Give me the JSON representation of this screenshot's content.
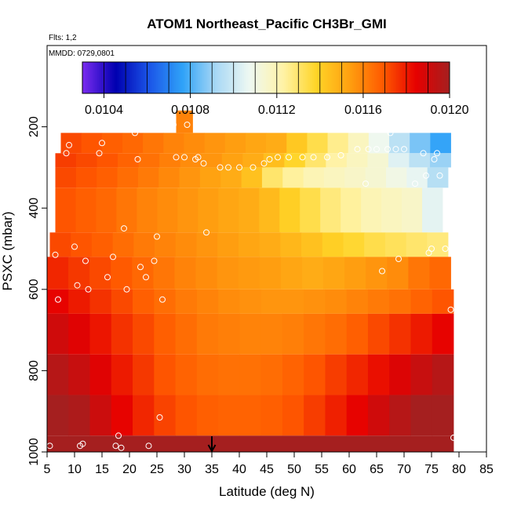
{
  "chart_data": {
    "type": "heatmap",
    "title": "ATOM1 Northeast_Pacific CH3Br_GMI",
    "notes": [
      "Flts: 1,2",
      "MMDD: 0729,0801"
    ],
    "xlabel": "Latitude (deg N)",
    "ylabel": "PSXC (mbar)",
    "xlim": [
      5,
      85
    ],
    "ylim": [
      1000,
      0
    ],
    "x_ticks": [
      5,
      10,
      15,
      20,
      25,
      30,
      35,
      40,
      45,
      50,
      55,
      60,
      65,
      70,
      75,
      80,
      85
    ],
    "y_ticks": [
      200,
      400,
      600,
      800,
      1000
    ],
    "colorbar": {
      "range": [
        0.0103,
        0.012
      ],
      "tick_values": [
        0.0104,
        0.0108,
        0.0112,
        0.0116,
        0.012
      ],
      "tick_labels": [
        "0.0104",
        "0.0108",
        "0.0112",
        "0.0116",
        "0.0120"
      ],
      "colors": [
        "#7b2cf0",
        "#0000b0",
        "#1b55e8",
        "#2fa2f8",
        "#a8d8f5",
        "#eef8f2",
        "#fff3a8",
        "#ffd528",
        "#ffa010",
        "#ff5a00",
        "#e60000",
        "#a51f1f"
      ]
    },
    "marker": {
      "lat": 35,
      "symbol": "down-arrow"
    },
    "rows": [
      {
        "p": [
          160,
          215
        ],
        "x0": 28.5,
        "x1": 31.5,
        "v": [
          0.0116
        ]
      },
      {
        "p": [
          215,
          265
        ],
        "x0": 7.5,
        "x1": 78.5,
        "v": [
          0.01172,
          0.0117,
          0.01168,
          0.01166,
          0.01163,
          0.0116,
          0.01158,
          0.01156,
          0.01154,
          0.01152,
          0.0115,
          0.01142,
          0.01134,
          0.01126,
          0.01118,
          0.01108,
          0.01096,
          0.01086,
          0.01077
        ]
      },
      {
        "p": [
          265,
          300
        ],
        "x0": 6.5,
        "x1": 78.5,
        "v": [
          0.01174,
          0.01172,
          0.0117,
          0.01167,
          0.01164,
          0.01161,
          0.01158,
          0.01156,
          0.01153,
          0.0115,
          0.01145,
          0.01138,
          0.0113,
          0.01123,
          0.01118,
          0.01114,
          0.01104,
          0.01096,
          0.0109
        ]
      },
      {
        "p": [
          300,
          350
        ],
        "x0": 6.5,
        "x1": 78.0,
        "v": [
          0.01172,
          0.0117,
          0.01168,
          0.01165,
          0.01162,
          0.01159,
          0.01156,
          0.01153,
          0.0115,
          0.01144,
          0.0113,
          0.01124,
          0.0112,
          0.01118,
          0.01116,
          0.01114,
          0.0111,
          0.01106,
          0.01095
        ]
      },
      {
        "p": [
          350,
          460
        ],
        "x0": 6.5,
        "x1": 77.0,
        "v": [
          0.0117,
          0.01168,
          0.01166,
          0.01163,
          0.0116,
          0.01158,
          0.01156,
          0.01154,
          0.01152,
          0.0115,
          0.01146,
          0.0114,
          0.01134,
          0.01128,
          0.01124,
          0.0112,
          0.01118,
          0.01116,
          0.01105
        ]
      },
      {
        "p": [
          460,
          520
        ],
        "x0": 5.5,
        "x1": 78.0,
        "v": [
          0.01172,
          0.0117,
          0.01168,
          0.01165,
          0.01162,
          0.0116,
          0.01158,
          0.01156,
          0.01154,
          0.01152,
          0.0115,
          0.01147,
          0.01144,
          0.0114,
          0.01137,
          0.01134,
          0.01132,
          0.0113,
          0.01128
        ]
      },
      {
        "p": [
          520,
          600
        ],
        "x0": 5.0,
        "x1": 78.5,
        "v": [
          0.01178,
          0.01175,
          0.01172,
          0.01169,
          0.01166,
          0.01163,
          0.0116,
          0.01158,
          0.01156,
          0.01155,
          0.01154,
          0.01152,
          0.0115,
          0.01152,
          0.01154,
          0.01156,
          0.01158,
          0.01163,
          0.01166
        ]
      },
      {
        "p": [
          600,
          660
        ],
        "x0": 5.0,
        "x1": 79.0,
        "v": [
          0.01184,
          0.0118,
          0.01176,
          0.01172,
          0.01168,
          0.01165,
          0.01162,
          0.0116,
          0.01158,
          0.01157,
          0.01156,
          0.01156,
          0.01157,
          0.01158,
          0.0116,
          0.01162,
          0.01164,
          0.01167,
          0.0117
        ]
      },
      {
        "p": [
          660,
          760
        ],
        "x0": 5.0,
        "x1": 79.0,
        "v": [
          0.0119,
          0.01186,
          0.01181,
          0.01176,
          0.01172,
          0.01168,
          0.01165,
          0.01162,
          0.01161,
          0.0116,
          0.0116,
          0.01161,
          0.01163,
          0.01165,
          0.01168,
          0.01172,
          0.01176,
          0.0118,
          0.01184
        ]
      },
      {
        "p": [
          760,
          860
        ],
        "x0": 5.0,
        "x1": 79.0,
        "v": [
          0.01196,
          0.01192,
          0.01186,
          0.0118,
          0.01175,
          0.0117,
          0.01167,
          0.01165,
          0.01164,
          0.01164,
          0.01165,
          0.01167,
          0.0117,
          0.01174,
          0.01178,
          0.01182,
          0.01187,
          0.01192,
          0.01196
        ]
      },
      {
        "p": [
          860,
          960
        ],
        "x0": 5.0,
        "x1": 79.0,
        "v": [
          0.01204,
          0.01198,
          0.01191,
          0.01184,
          0.01178,
          0.01173,
          0.0117,
          0.01168,
          0.01167,
          0.01167,
          0.01168,
          0.0117,
          0.01174,
          0.01179,
          0.01184,
          0.0119,
          0.01196,
          0.01201,
          0.01205
        ]
      },
      {
        "p": [
          960,
          1010
        ],
        "x0": 5.0,
        "x1": 79.0,
        "v": [
          0.0121
        ]
      }
    ],
    "obs_points": [
      {
        "lat": 5.5,
        "p": 985
      },
      {
        "lat": 6.5,
        "p": 515
      },
      {
        "lat": 7.0,
        "p": 625
      },
      {
        "lat": 8.5,
        "p": 265
      },
      {
        "lat": 9.0,
        "p": 245
      },
      {
        "lat": 10.0,
        "p": 495
      },
      {
        "lat": 10.5,
        "p": 590
      },
      {
        "lat": 11.0,
        "p": 985
      },
      {
        "lat": 11.5,
        "p": 980
      },
      {
        "lat": 12.0,
        "p": 530
      },
      {
        "lat": 12.5,
        "p": 600
      },
      {
        "lat": 14.5,
        "p": 265
      },
      {
        "lat": 15.0,
        "p": 240
      },
      {
        "lat": 16.0,
        "p": 570
      },
      {
        "lat": 17.0,
        "p": 520
      },
      {
        "lat": 17.5,
        "p": 985
      },
      {
        "lat": 18.0,
        "p": 960
      },
      {
        "lat": 18.5,
        "p": 990
      },
      {
        "lat": 19.0,
        "p": 450
      },
      {
        "lat": 19.5,
        "p": 600
      },
      {
        "lat": 21.0,
        "p": 215
      },
      {
        "lat": 21.5,
        "p": 280
      },
      {
        "lat": 22.0,
        "p": 545
      },
      {
        "lat": 23.0,
        "p": 570
      },
      {
        "lat": 23.5,
        "p": 985
      },
      {
        "lat": 24.5,
        "p": 530
      },
      {
        "lat": 25.0,
        "p": 470
      },
      {
        "lat": 25.5,
        "p": 915
      },
      {
        "lat": 26.0,
        "p": 625
      },
      {
        "lat": 28.0,
        "p": 195
      },
      {
        "lat": 28.5,
        "p": 275
      },
      {
        "lat": 30.0,
        "p": 275
      },
      {
        "lat": 30.5,
        "p": 195
      },
      {
        "lat": 32.0,
        "p": 280
      },
      {
        "lat": 32.5,
        "p": 275
      },
      {
        "lat": 33.5,
        "p": 290
      },
      {
        "lat": 34.0,
        "p": 460
      },
      {
        "lat": 36.5,
        "p": 300
      },
      {
        "lat": 38.0,
        "p": 300
      },
      {
        "lat": 40.0,
        "p": 300
      },
      {
        "lat": 42.5,
        "p": 300
      },
      {
        "lat": 44.5,
        "p": 290
      },
      {
        "lat": 45.5,
        "p": 280
      },
      {
        "lat": 47.0,
        "p": 275
      },
      {
        "lat": 49.0,
        "p": 275
      },
      {
        "lat": 51.5,
        "p": 275
      },
      {
        "lat": 53.5,
        "p": 275
      },
      {
        "lat": 56.0,
        "p": 275
      },
      {
        "lat": 58.5,
        "p": 270
      },
      {
        "lat": 61.5,
        "p": 255
      },
      {
        "lat": 63.0,
        "p": 340
      },
      {
        "lat": 63.5,
        "p": 255
      },
      {
        "lat": 65.0,
        "p": 255
      },
      {
        "lat": 66.0,
        "p": 555
      },
      {
        "lat": 67.0,
        "p": 255
      },
      {
        "lat": 67.5,
        "p": 215
      },
      {
        "lat": 68.5,
        "p": 255
      },
      {
        "lat": 69.0,
        "p": 525
      },
      {
        "lat": 70.0,
        "p": 255
      },
      {
        "lat": 72.0,
        "p": 340
      },
      {
        "lat": 73.5,
        "p": 265
      },
      {
        "lat": 74.0,
        "p": 320
      },
      {
        "lat": 74.5,
        "p": 510
      },
      {
        "lat": 75.0,
        "p": 500
      },
      {
        "lat": 75.5,
        "p": 280
      },
      {
        "lat": 76.0,
        "p": 265
      },
      {
        "lat": 76.5,
        "p": 320
      },
      {
        "lat": 77.5,
        "p": 500
      },
      {
        "lat": 78.5,
        "p": 650
      },
      {
        "lat": 79.0,
        "p": 965
      }
    ]
  }
}
